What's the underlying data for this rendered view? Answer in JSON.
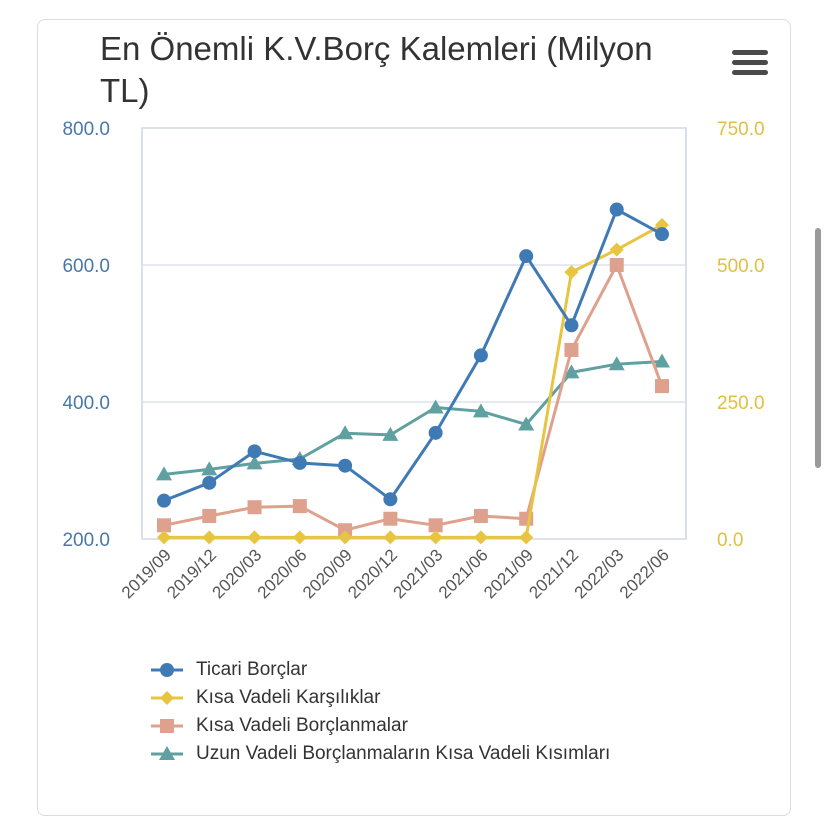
{
  "chart_data": {
    "type": "line",
    "title": "En Önemli K.V.Borç Kalemleri (Milyon TL)",
    "categories": [
      "2019/09",
      "2019/12",
      "2020/03",
      "2020/06",
      "2020/09",
      "2020/12",
      "2021/03",
      "2021/06",
      "2021/09",
      "2021/12",
      "2022/03",
      "2022/06"
    ],
    "left_axis": {
      "ylim": [
        200,
        800
      ],
      "ticks": [
        "200.0",
        "400.0",
        "600.0",
        "800.0"
      ],
      "tick_values": [
        200,
        400,
        600,
        800
      ],
      "color": "#4878a8"
    },
    "right_axis": {
      "ylim": [
        0,
        750
      ],
      "ticks": [
        "0.0",
        "250.0",
        "500.0",
        "750.0"
      ],
      "tick_values": [
        0,
        250,
        500,
        750
      ],
      "color": "#e0c040"
    },
    "series": [
      {
        "name": "Ticari Borçlar",
        "axis": "left",
        "color": "#3f7ab5",
        "marker": "circle",
        "values": [
          256,
          282,
          328,
          311,
          307,
          258,
          355,
          468,
          613,
          512,
          681,
          645
        ]
      },
      {
        "name": "Kısa Vadeli Karşılıklar",
        "axis": "right",
        "color": "#e8c540",
        "marker": "diamond",
        "values": [
          3,
          3,
          3,
          3,
          3,
          3,
          3,
          3,
          3,
          487,
          528,
          573
        ]
      },
      {
        "name": "Kısa Vadeli Borçlanmalar",
        "axis": "right",
        "color": "#dea18d",
        "marker": "square",
        "values": [
          25,
          42,
          58,
          60,
          16,
          37,
          25,
          42,
          37,
          345,
          500,
          279
        ]
      },
      {
        "name": "Uzun Vadeli Borçlanmaların Kısa Vadeli Kısımları",
        "axis": "right",
        "color": "#60a0a0",
        "marker": "triangle",
        "values": [
          118,
          127,
          138,
          146,
          193,
          190,
          240,
          233,
          209,
          304,
          319,
          324
        ]
      }
    ]
  }
}
